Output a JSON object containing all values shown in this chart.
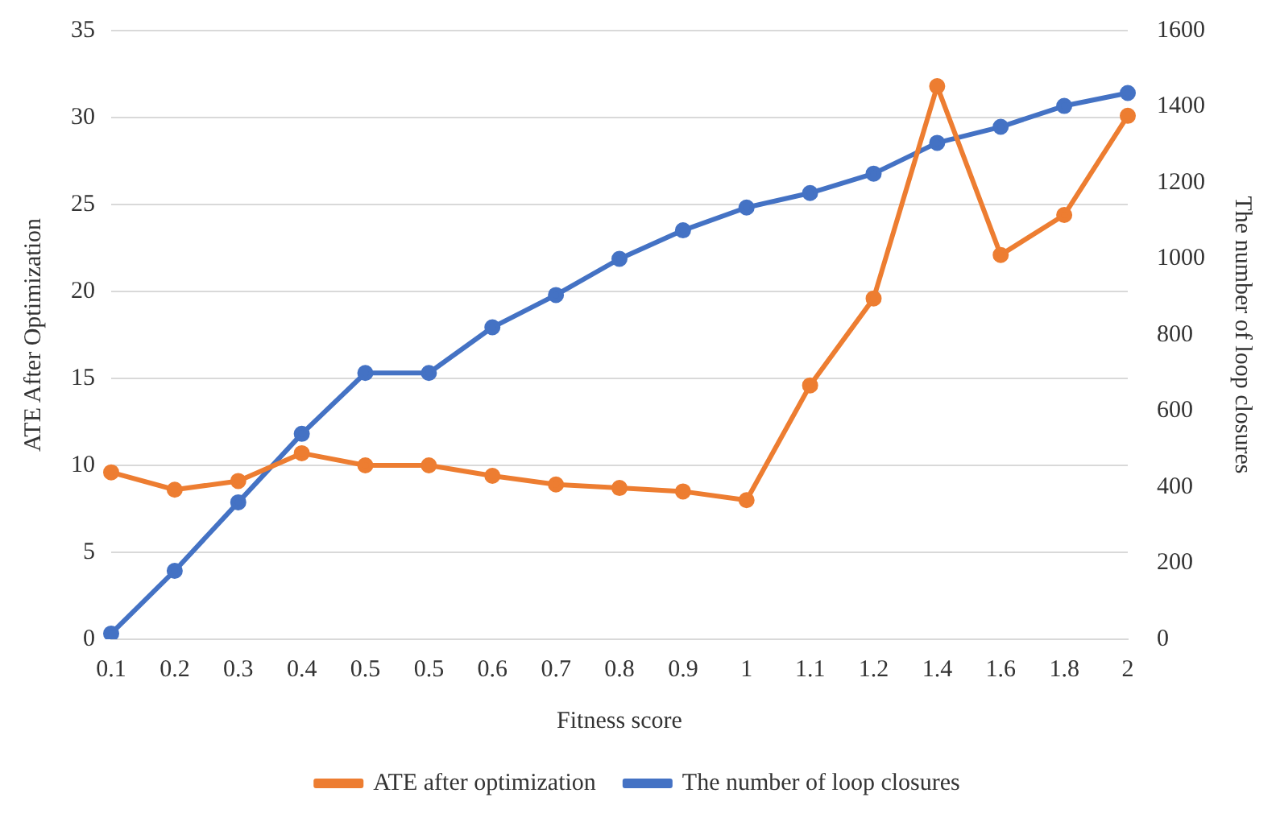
{
  "chart_data": {
    "type": "line",
    "xlabel": "Fitness score",
    "ylabel": "ATE After Optimization",
    "y2label": "The number of loop closures",
    "categories": [
      "0.1",
      "0.2",
      "0.3",
      "0.4",
      "0.5",
      "0.5",
      "0.6",
      "0.7",
      "0.8",
      "0.9",
      "1",
      "1.1",
      "1.2",
      "1.4",
      "1.6",
      "1.8",
      "2"
    ],
    "series": [
      {
        "name": "ATE after optimization",
        "color": "#ed7d31",
        "values": [
          9.6,
          8.6,
          9.1,
          10.7,
          10.0,
          10.0,
          9.4,
          8.9,
          8.7,
          8.5,
          8.0,
          14.6,
          19.6,
          31.8,
          22.1,
          24.4,
          30.1
        ]
      },
      {
        "name": "The number of loop closures",
        "color": "#4472c4",
        "axis": "y2",
        "values": [
          15,
          180,
          360,
          540,
          700,
          700,
          820,
          905,
          1000,
          1075,
          1135,
          1173,
          1224,
          1305,
          1347,
          1402,
          1436
        ]
      }
    ],
    "ylim": [
      0,
      35
    ],
    "yticks": [
      0,
      5,
      10,
      15,
      20,
      25,
      30,
      35
    ],
    "y2lim": [
      0,
      1600
    ],
    "y2ticks": [
      0,
      200,
      400,
      600,
      800,
      1000,
      1200,
      1400,
      1600
    ],
    "grid": "y",
    "legend": "bottom",
    "marker": "circle",
    "line_style": "solid"
  }
}
